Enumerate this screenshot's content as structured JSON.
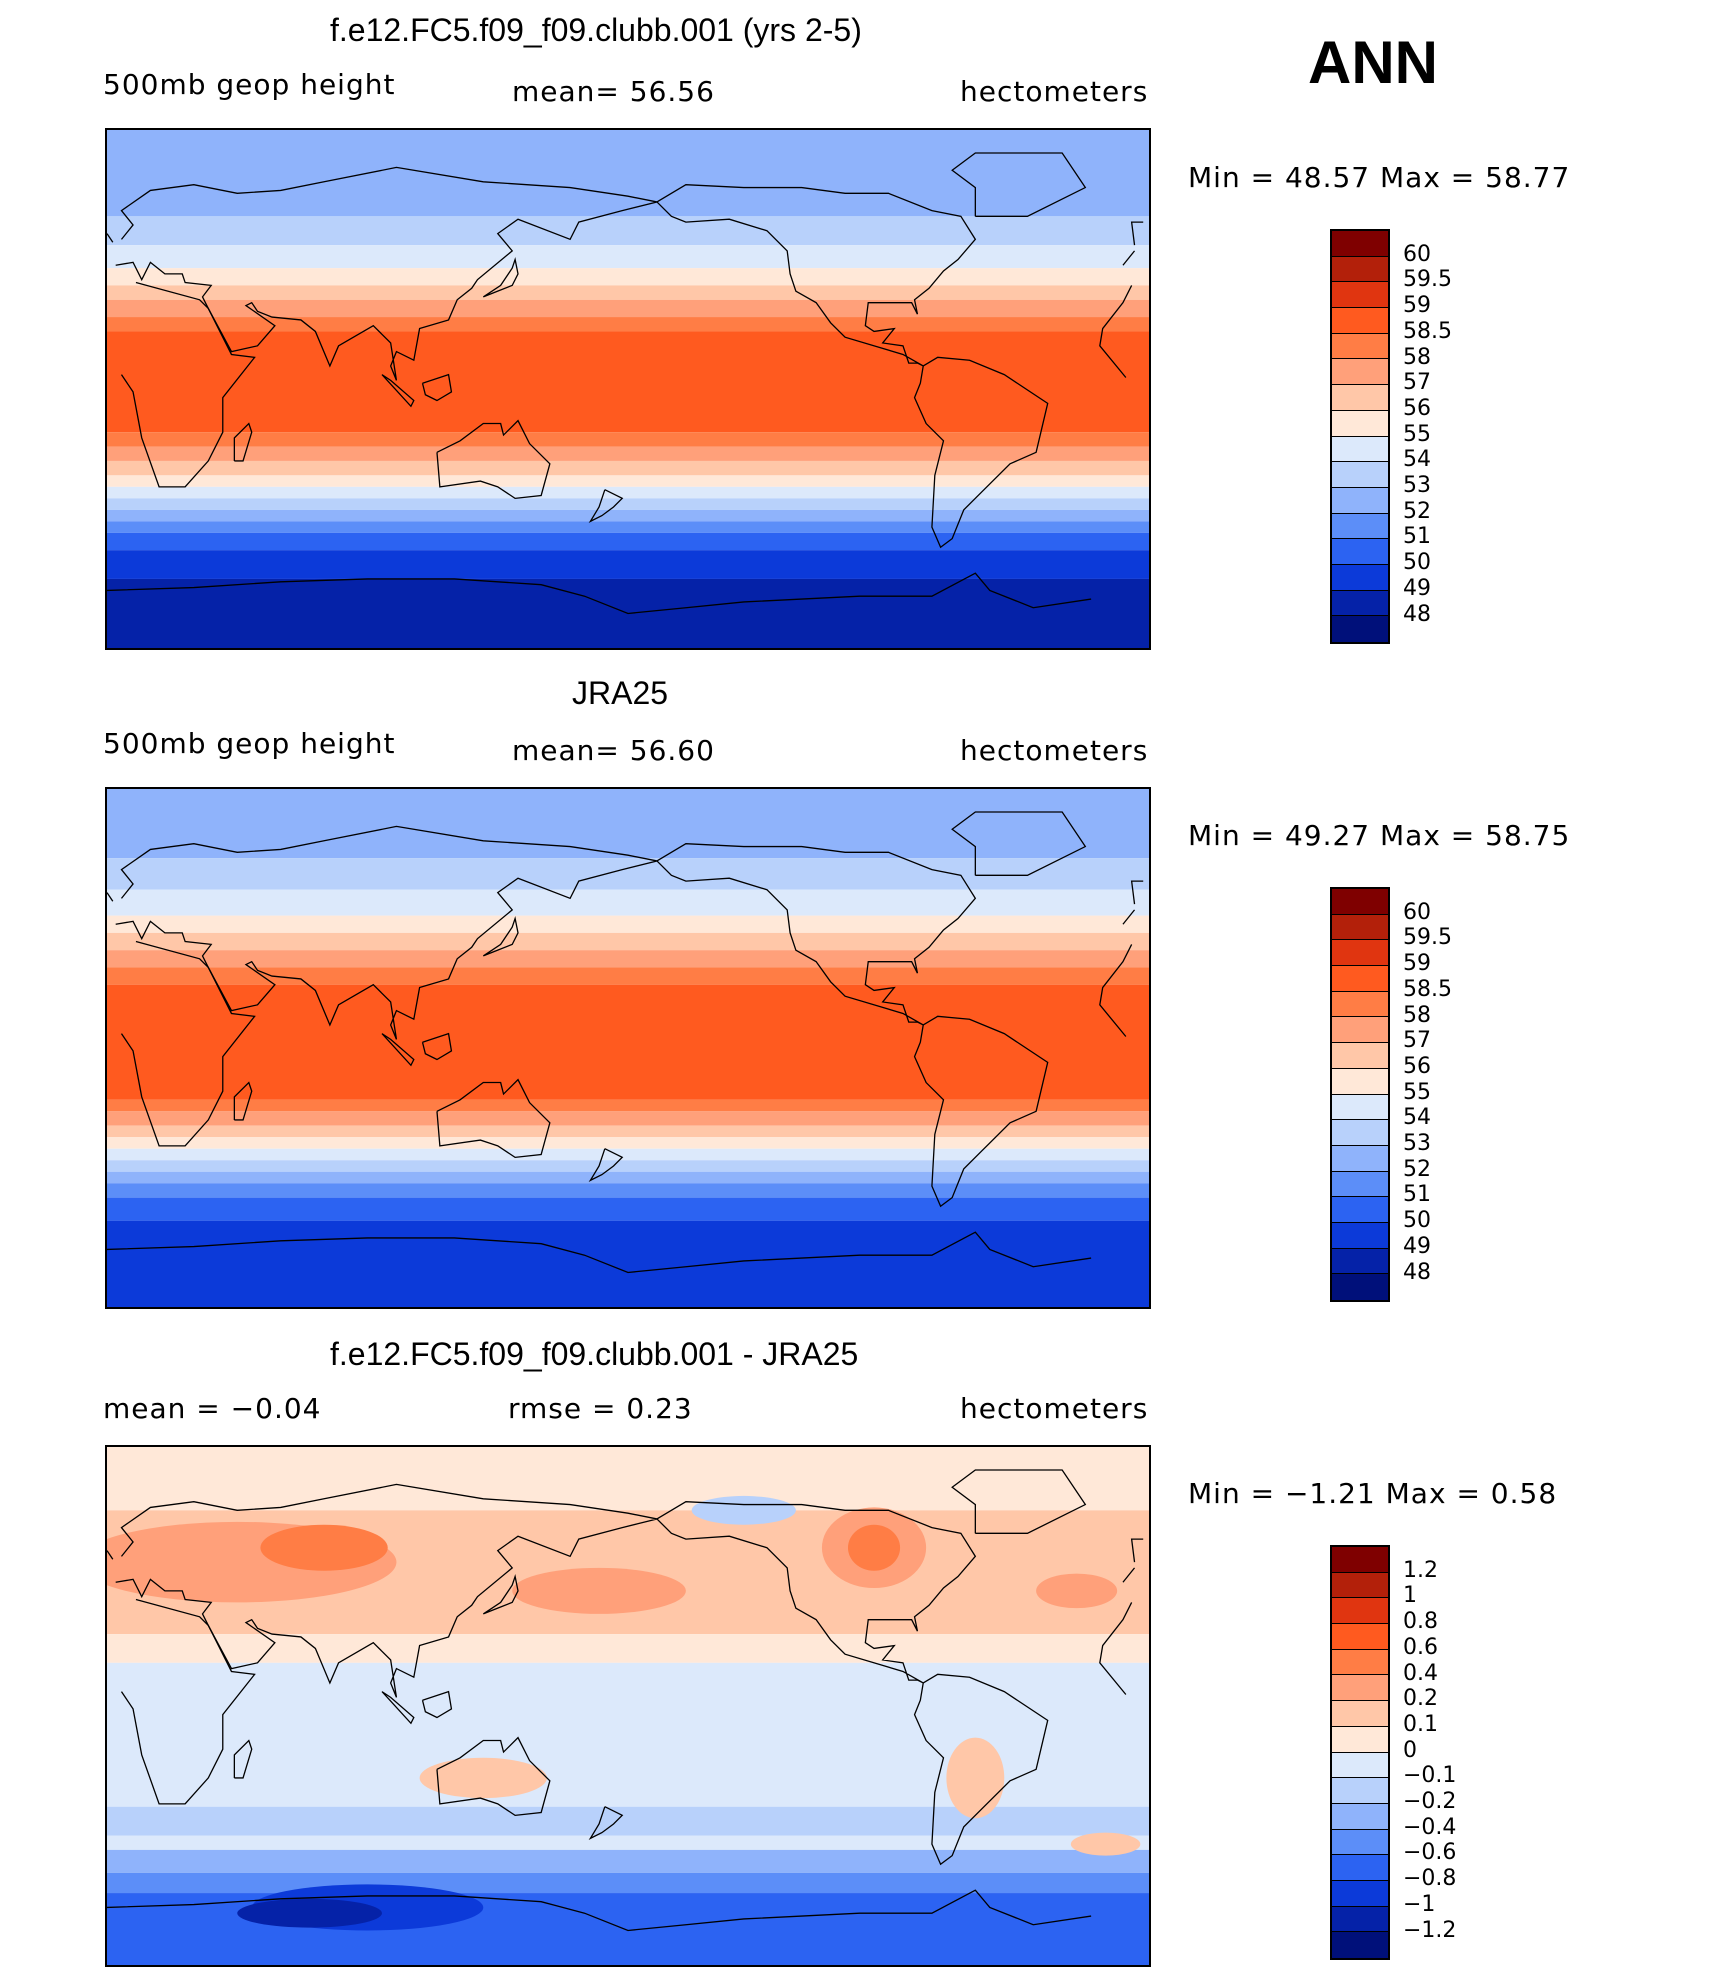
{
  "season": "ANN",
  "panels": [
    {
      "title": "f.e12.FC5.f09_f09.clubb.001 (yrs 2-5)",
      "left_label": "500mb  geop  height",
      "center_label": "mean=   56.56",
      "units": "hectometers",
      "minmax": "Min  =    48.57  Max  =    58.77",
      "levels": [
        "60",
        "59.5",
        "59",
        "58.5",
        "58",
        "57",
        "56",
        "55",
        "54",
        "53",
        "52",
        "51",
        "50",
        "49",
        "48"
      ],
      "colors": [
        "#7f0000",
        "#b3200a",
        "#e03510",
        "#ff5a1f",
        "#ff7d45",
        "#ffa07a",
        "#ffc7a8",
        "#ffe8d8",
        "#dce9fb",
        "#b8d1fb",
        "#8fb3fb",
        "#5c8ef8",
        "#2c63f2",
        "#0c3ad9",
        "#0522a8",
        "#00107a"
      ],
      "bands": [
        {
          "c": "#8fb3fb",
          "lat": [
            60,
            90
          ]
        },
        {
          "c": "#b8d1fb",
          "lat": [
            50,
            60
          ]
        },
        {
          "c": "#dce9fb",
          "lat": [
            42,
            50
          ]
        },
        {
          "c": "#ffe8d8",
          "lat": [
            36,
            42
          ]
        },
        {
          "c": "#ffc7a8",
          "lat": [
            31,
            36
          ]
        },
        {
          "c": "#ffa07a",
          "lat": [
            25,
            31
          ]
        },
        {
          "c": "#ff7d45",
          "lat": [
            20,
            25
          ]
        },
        {
          "c": "#ff5a1f",
          "lat": [
            -15,
            20
          ]
        },
        {
          "c": "#ff7d45",
          "lat": [
            -20,
            -15
          ]
        },
        {
          "c": "#ffa07a",
          "lat": [
            -25,
            -20
          ]
        },
        {
          "c": "#ffc7a8",
          "lat": [
            -30,
            -25
          ]
        },
        {
          "c": "#ffe8d8",
          "lat": [
            -34,
            -30
          ]
        },
        {
          "c": "#dce9fb",
          "lat": [
            -38,
            -34
          ]
        },
        {
          "c": "#b8d1fb",
          "lat": [
            -42,
            -38
          ]
        },
        {
          "c": "#8fb3fb",
          "lat": [
            -46,
            -42
          ]
        },
        {
          "c": "#5c8ef8",
          "lat": [
            -50,
            -46
          ]
        },
        {
          "c": "#2c63f2",
          "lat": [
            -56,
            -50
          ]
        },
        {
          "c": "#0c3ad9",
          "lat": [
            -66,
            -56
          ]
        },
        {
          "c": "#0522a8",
          "lat": [
            -90,
            -66
          ]
        }
      ]
    },
    {
      "title": "JRA25",
      "left_label": "500mb  geop  height",
      "center_label": "mean=   56.60",
      "units": "hectometers",
      "minmax": "Min  =    49.27  Max  =    58.75",
      "levels": [
        "60",
        "59.5",
        "59",
        "58.5",
        "58",
        "57",
        "56",
        "55",
        "54",
        "53",
        "52",
        "51",
        "50",
        "49",
        "48"
      ],
      "colors": [
        "#7f0000",
        "#b3200a",
        "#e03510",
        "#ff5a1f",
        "#ff7d45",
        "#ffa07a",
        "#ffc7a8",
        "#ffe8d8",
        "#dce9fb",
        "#b8d1fb",
        "#8fb3fb",
        "#5c8ef8",
        "#2c63f2",
        "#0c3ad9",
        "#0522a8",
        "#00107a"
      ],
      "bands": [
        {
          "c": "#8fb3fb",
          "lat": [
            66,
            90
          ]
        },
        {
          "c": "#b8d1fb",
          "lat": [
            55,
            66
          ]
        },
        {
          "c": "#dce9fb",
          "lat": [
            46,
            55
          ]
        },
        {
          "c": "#ffe8d8",
          "lat": [
            40,
            46
          ]
        },
        {
          "c": "#ffc7a8",
          "lat": [
            34,
            40
          ]
        },
        {
          "c": "#ffa07a",
          "lat": [
            28,
            34
          ]
        },
        {
          "c": "#ff7d45",
          "lat": [
            22,
            28
          ]
        },
        {
          "c": "#ff5a1f",
          "lat": [
            -18,
            22
          ]
        },
        {
          "c": "#ff7d45",
          "lat": [
            -22,
            -18
          ]
        },
        {
          "c": "#ffa07a",
          "lat": [
            -27,
            -22
          ]
        },
        {
          "c": "#ffc7a8",
          "lat": [
            -31,
            -27
          ]
        },
        {
          "c": "#ffe8d8",
          "lat": [
            -35,
            -31
          ]
        },
        {
          "c": "#dce9fb",
          "lat": [
            -39,
            -35
          ]
        },
        {
          "c": "#b8d1fb",
          "lat": [
            -43,
            -39
          ]
        },
        {
          "c": "#8fb3fb",
          "lat": [
            -47,
            -43
          ]
        },
        {
          "c": "#5c8ef8",
          "lat": [
            -52,
            -47
          ]
        },
        {
          "c": "#2c63f2",
          "lat": [
            -60,
            -52
          ]
        },
        {
          "c": "#0c3ad9",
          "lat": [
            -90,
            -60
          ]
        }
      ]
    },
    {
      "title": "f.e12.FC5.f09_f09.clubb.001 - JRA25",
      "left_label": "mean  =    −0.04",
      "center_label": "rmse  =     0.23",
      "units": "hectometers",
      "minmax": "Min  =    −1.21  Max  =     0.58",
      "levels": [
        "1.2",
        "1",
        "0.8",
        "0.6",
        "0.4",
        "0.2",
        "0.1",
        "0",
        "−0.1",
        "−0.2",
        "−0.4",
        "−0.6",
        "−0.8",
        "−1",
        "−1.2"
      ],
      "colors": [
        "#7f0000",
        "#b3200a",
        "#e03510",
        "#ff5a1f",
        "#ff7d45",
        "#ffa07a",
        "#ffc7a8",
        "#ffe8d8",
        "#dce9fb",
        "#b8d1fb",
        "#8fb3fb",
        "#5c8ef8",
        "#2c63f2",
        "#0c3ad9",
        "#0522a8",
        "#00107a"
      ],
      "bands": [
        {
          "c": "#ffe8d8",
          "lat": [
            68,
            90
          ]
        },
        {
          "c": "#ffc7a8",
          "lat": [
            25,
            68
          ]
        },
        {
          "c": "#ffe8d8",
          "lat": [
            15,
            25
          ]
        },
        {
          "c": "#dce9fb",
          "lat": [
            -35,
            15
          ]
        },
        {
          "c": "#b8d1fb",
          "lat": [
            -45,
            -35
          ]
        },
        {
          "c": "#dce9fb",
          "lat": [
            -50,
            -45
          ]
        },
        {
          "c": "#8fb3fb",
          "lat": [
            -58,
            -50
          ]
        },
        {
          "c": "#5c8ef8",
          "lat": [
            -65,
            -58
          ]
        },
        {
          "c": "#2c63f2",
          "lat": [
            -90,
            -65
          ]
        }
      ],
      "blobs": [
        {
          "c": "#ffa07a",
          "lon": 45,
          "lat": 50,
          "rx": 55,
          "ry": 14
        },
        {
          "c": "#ff7d45",
          "lon": 75,
          "lat": 55,
          "rx": 22,
          "ry": 8
        },
        {
          "c": "#ffa07a",
          "lon": 170,
          "lat": 40,
          "rx": 30,
          "ry": 8
        },
        {
          "c": "#ffa07a",
          "lon": 265,
          "lat": 55,
          "rx": 18,
          "ry": 14
        },
        {
          "c": "#ff7d45",
          "lon": 265,
          "lat": 55,
          "rx": 9,
          "ry": 8
        },
        {
          "c": "#b8d1fb",
          "lon": 220,
          "lat": 68,
          "rx": 18,
          "ry": 5
        },
        {
          "c": "#ffa07a",
          "lon": 335,
          "lat": 40,
          "rx": 14,
          "ry": 6
        },
        {
          "c": "#ffc7a8",
          "lon": 130,
          "lat": -25,
          "rx": 22,
          "ry": 7
        },
        {
          "c": "#ffc7a8",
          "lon": 300,
          "lat": -25,
          "rx": 10,
          "ry": 14
        },
        {
          "c": "#ffc7a8",
          "lon": 345,
          "lat": -48,
          "rx": 12,
          "ry": 4
        },
        {
          "c": "#0c3ad9",
          "lon": 90,
          "lat": -70,
          "rx": 40,
          "ry": 8
        },
        {
          "c": "#0522a8",
          "lon": 70,
          "lat": -72,
          "rx": 25,
          "ry": 5
        }
      ]
    }
  ]
}
